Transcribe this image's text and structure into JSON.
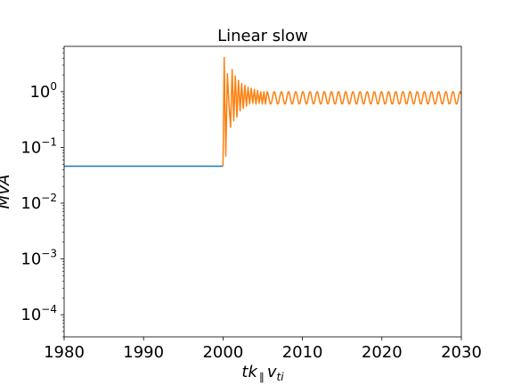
{
  "chart_data": {
    "type": "line",
    "title": "Linear slow",
    "xlabel": "tk∥v_ti",
    "xlabel_parts": {
      "main": "tk",
      "sub1": "∥",
      "mid": "v",
      "sub2": "ti"
    },
    "ylabel": "MVA",
    "yscale": "log",
    "xlim": [
      1980,
      2030
    ],
    "ylim": [
      4e-05,
      6.5
    ],
    "x_ticks": [
      1980,
      1990,
      2000,
      2010,
      2020,
      2030
    ],
    "y_ticks": [
      {
        "value": 0.0001,
        "base": "10",
        "exp": "−4"
      },
      {
        "value": 0.001,
        "base": "10",
        "exp": "−3"
      },
      {
        "value": 0.01,
        "base": "10",
        "exp": "−2"
      },
      {
        "value": 0.1,
        "base": "10",
        "exp": "−1"
      },
      {
        "value": 1,
        "base": "10",
        "exp": "0"
      }
    ],
    "grid": false,
    "series": [
      {
        "color": "#1f77b4",
        "x": [
          1980,
          2000
        ],
        "y": [
          0.046,
          0.046
        ]
      },
      {
        "color": "#ff7f0e",
        "x": [
          2000,
          2000.15,
          2000.35,
          2000.55,
          2000.75,
          2000.95,
          2001.15,
          2001.35,
          2001.55,
          2001.75,
          2001.95,
          2002.15,
          2002.35,
          2002.55,
          2002.75,
          2002.95,
          2003.15,
          2003.35,
          2003.55,
          2003.75,
          2003.95,
          2004.15,
          2004.35,
          2004.55,
          2004.75,
          2004.95,
          2005.15,
          2005.35,
          2005.55
        ],
        "y": [
          0.046,
          4.1,
          0.07,
          2.1,
          0.6,
          0.23,
          2.5,
          0.3,
          1.9,
          0.35,
          1.6,
          0.45,
          1.4,
          0.5,
          1.3,
          0.55,
          1.2,
          0.6,
          1.15,
          0.62,
          1.1,
          0.6,
          1.05,
          0.62,
          1.0,
          0.6,
          1.0,
          0.6,
          1.0
        ]
      }
    ],
    "steady_oscillation": {
      "start": 2005.55,
      "end": 2030,
      "period": 0.9,
      "low": 0.6,
      "high": 1.0,
      "color": "#ff7f0e"
    }
  }
}
